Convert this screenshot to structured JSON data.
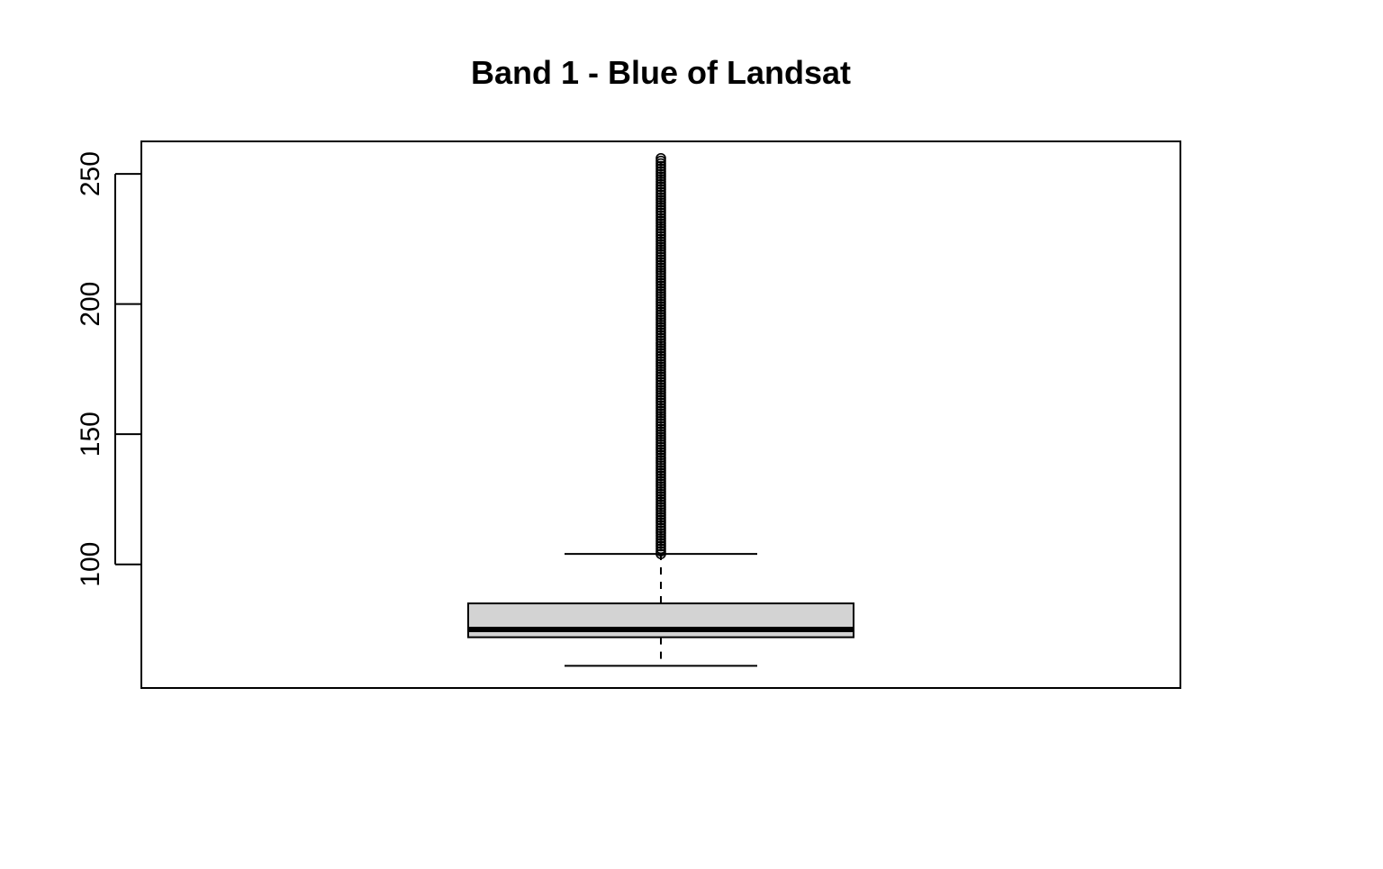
{
  "chart_data": {
    "type": "boxplot",
    "title": "Band 1 - Blue of Landsat",
    "xlabel": "",
    "ylabel": "",
    "ylim": [
      52.5,
      262.5
    ],
    "yticks": [
      100,
      150,
      200,
      250
    ],
    "ytick_labels": [
      "100",
      "150",
      "200",
      "250"
    ],
    "box": {
      "whisker_low": 61,
      "q1": 72,
      "median": 75,
      "q3": 85,
      "whisker_high": 104,
      "outliers": {
        "min": 104,
        "max": 256,
        "step": 1
      }
    },
    "box_fill": "#d3d3d3",
    "grid": false
  }
}
